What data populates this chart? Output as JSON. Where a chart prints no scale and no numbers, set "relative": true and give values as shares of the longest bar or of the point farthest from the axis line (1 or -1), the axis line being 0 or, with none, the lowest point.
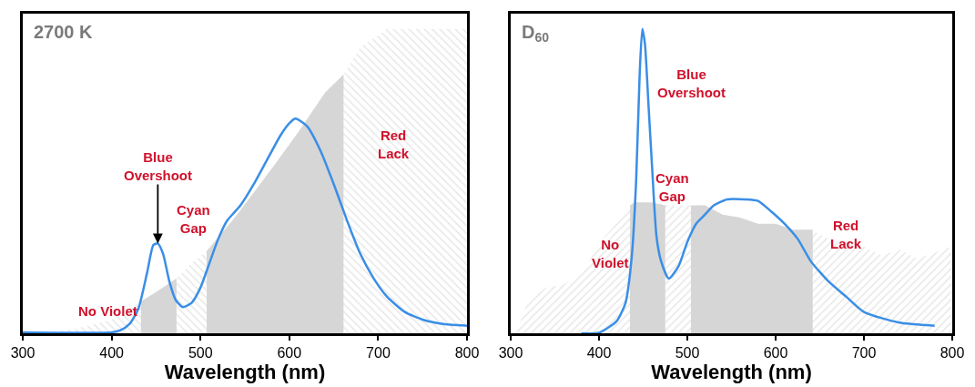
{
  "chart_data": [
    {
      "type": "line",
      "title": "2700 K",
      "xlabel": "Wavelength (nm)",
      "relative": true,
      "xlim": [
        300,
        800
      ],
      "xticks": [
        300,
        400,
        500,
        600,
        700,
        800
      ],
      "series": [
        {
          "type": "area",
          "color": "#d0d0d0",
          "x": [
            300,
            330,
            360,
            400,
            433,
            450,
            473,
            490,
            507,
            540,
            580,
            610,
            640,
            661,
            680,
            700,
            710,
            800
          ],
          "values": [
            0,
            0.005,
            0.015,
            0.045,
            0.105,
            0.135,
            0.18,
            0.23,
            0.27,
            0.385,
            0.54,
            0.66,
            0.79,
            0.85,
            0.94,
            0.98,
            1,
            1
          ]
        },
        {
          "type": "area",
          "color": "#d6d6d6",
          "x": [
            433,
            450,
            473
          ],
          "values": [
            0.105,
            0.135,
            0.18
          ]
        },
        {
          "type": "area",
          "color": "#d6d6d6",
          "x": [
            507,
            540,
            580,
            610,
            640,
            661
          ],
          "values": [
            0.27,
            0.385,
            0.54,
            0.66,
            0.79,
            0.85
          ]
        },
        {
          "color": "#3a8ee6",
          "x": [
            300,
            400,
            410,
            420,
            430,
            440,
            447,
            452,
            458,
            465,
            472,
            480,
            490,
            500,
            510,
            520,
            530,
            545,
            560,
            575,
            590,
            600,
            607,
            620,
            635,
            650,
            665,
            680,
            695,
            710,
            730,
            750,
            775,
            800
          ],
          "values": [
            0.003,
            0.003,
            0.01,
            0.03,
            0.08,
            0.2,
            0.29,
            0.295,
            0.26,
            0.17,
            0.11,
            0.086,
            0.1,
            0.15,
            0.23,
            0.31,
            0.37,
            0.42,
            0.49,
            0.57,
            0.65,
            0.69,
            0.705,
            0.68,
            0.6,
            0.49,
            0.37,
            0.26,
            0.18,
            0.12,
            0.07,
            0.045,
            0.03,
            0.025
          ]
        }
      ],
      "annotations": [
        "No Violet",
        {
          "text": "Blue\nOvershoot",
          "x": 452,
          "y": 0.295
        },
        "Cyan\nGap",
        "Red\nLack"
      ]
    },
    {
      "type": "line",
      "title": "D$_{60}$",
      "xlabel": "Wavelength (nm)",
      "relative": true,
      "xlim": [
        300,
        800
      ],
      "xticks": [
        300,
        400,
        500,
        600,
        700,
        800
      ],
      "series": [
        {
          "type": "area",
          "color": "#d0d0d0",
          "x": [
            306,
            320,
            340,
            360,
            380,
            407,
            432,
            440,
            460,
            480,
            500,
            520,
            540,
            560,
            580,
            600,
            620,
            640,
            660,
            680,
            700,
            720,
            740,
            760,
            780,
            800
          ],
          "values": [
            0,
            0.11,
            0.15,
            0.16,
            0.2,
            0.32,
            0.4,
            0.43,
            0.43,
            0.42,
            0.42,
            0.42,
            0.39,
            0.38,
            0.36,
            0.36,
            0.34,
            0.34,
            0.31,
            0.3,
            0.285,
            0.255,
            0.275,
            0.245,
            0.265,
            0.285
          ]
        },
        {
          "type": "area",
          "color": "#d6d6d6",
          "x": [
            435,
            440,
            460,
            475
          ],
          "values": [
            0.42,
            0.43,
            0.43,
            0.42
          ]
        },
        {
          "type": "area",
          "color": "#d6d6d6",
          "x": [
            504,
            520,
            540,
            560,
            580,
            600,
            620,
            642
          ],
          "values": [
            0.42,
            0.42,
            0.39,
            0.38,
            0.36,
            0.36,
            0.34,
            0.34
          ]
        },
        {
          "color": "#3a8ee6",
          "x": [
            380,
            400,
            420,
            430,
            437,
            442,
            446,
            449,
            452,
            456,
            460,
            465,
            470,
            479,
            490,
            500,
            510,
            520,
            530,
            545,
            565,
            580,
            595,
            610,
            625,
            640,
            660,
            680,
            700,
            740,
            780
          ],
          "values": [
            0,
            0.002,
            0.04,
            0.1,
            0.25,
            0.5,
            0.85,
            1,
            0.95,
            0.75,
            0.55,
            0.32,
            0.24,
            0.18,
            0.22,
            0.3,
            0.36,
            0.39,
            0.42,
            0.44,
            0.44,
            0.435,
            0.4,
            0.36,
            0.31,
            0.236,
            0.17,
            0.12,
            0.07,
            0.035,
            0.025
          ]
        }
      ],
      "annotations": [
        "No\nViolet",
        "Blue\nOvershoot",
        "Cyan\nGap",
        "Red\nLack"
      ]
    }
  ]
}
